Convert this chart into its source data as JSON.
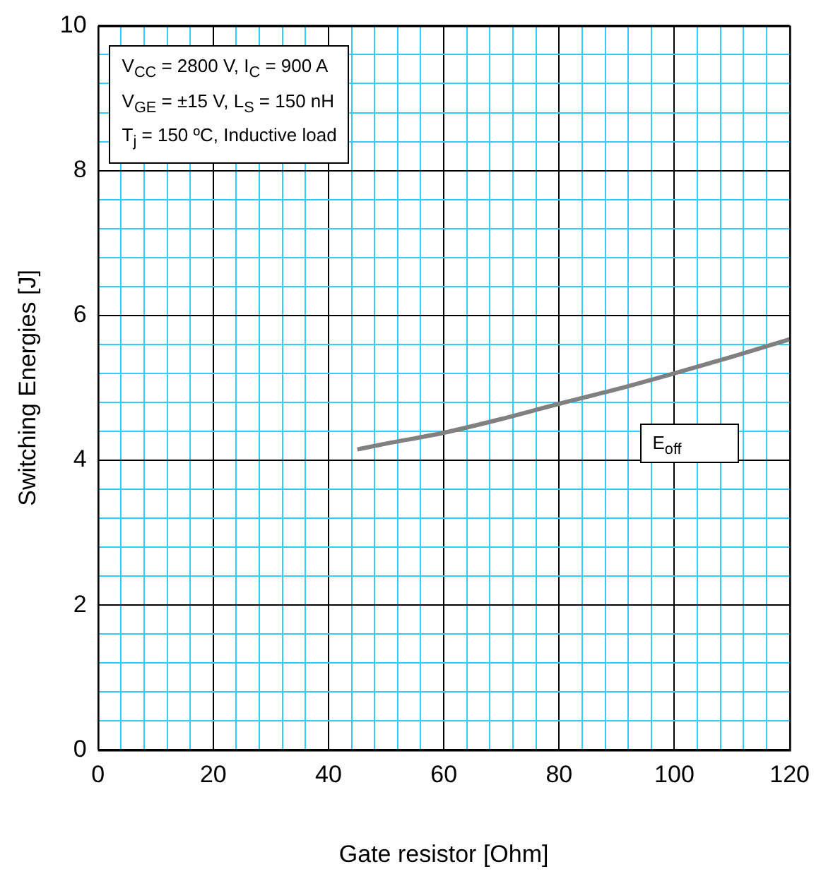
{
  "chart_data": {
    "type": "line",
    "xlabel": "Gate resistor [Ohm]",
    "ylabel": "Switching Energies [J]",
    "xlim": [
      0,
      120
    ],
    "xticks": [
      0,
      {
        "value": 4,
        "label": null
      },
      {
        "value": 8,
        "label": null
      },
      {
        "value": 12,
        "label": null
      },
      {
        "value": 16,
        "label": null
      },
      20,
      {
        "value": 24,
        "label": null
      },
      {
        "value": 28,
        "label": null
      },
      {
        "value": 32,
        "label": null
      },
      {
        "value": 36,
        "label": null
      },
      40,
      {
        "value": 44,
        "label": null
      },
      {
        "value": 48,
        "label": null
      },
      {
        "value": 52,
        "label": null
      },
      {
        "value": 56,
        "label": null
      },
      60,
      {
        "value": 64,
        "label": null
      },
      {
        "value": 68,
        "label": null
      },
      {
        "value": 72,
        "label": null
      },
      {
        "value": 76,
        "label": null
      },
      80,
      {
        "value": 84,
        "label": null
      },
      {
        "value": 88,
        "label": null
      },
      {
        "value": 92,
        "label": null
      },
      {
        "value": 96,
        "label": null
      },
      100,
      {
        "value": 104,
        "label": null
      },
      {
        "value": 108,
        "label": null
      },
      {
        "value": 112,
        "label": null
      },
      {
        "value": 116,
        "label": null
      },
      120
    ],
    "ylim": [
      0,
      10
    ],
    "yticks": [
      0,
      {
        "value": 0.4,
        "label": null
      },
      {
        "value": 0.8,
        "label": null
      },
      {
        "value": 1.2,
        "label": null
      },
      {
        "value": 1.6,
        "label": null
      },
      2,
      {
        "value": 2.4,
        "label": null
      },
      {
        "value": 2.8,
        "label": null
      },
      {
        "value": 3.2,
        "label": null
      },
      {
        "value": 3.6,
        "label": null
      },
      4,
      {
        "value": 4.4,
        "label": null
      },
      {
        "value": 4.8,
        "label": null
      },
      {
        "value": 5.2,
        "label": null
      },
      {
        "value": 5.6,
        "label": null
      },
      6,
      {
        "value": 6.4,
        "label": null
      },
      {
        "value": 6.8,
        "label": null
      },
      {
        "value": 7.2,
        "label": null
      },
      {
        "value": 7.6,
        "label": null
      },
      8,
      {
        "value": 8.4,
        "label": null
      },
      {
        "value": 8.8,
        "label": null
      },
      {
        "value": 9.2,
        "label": null
      },
      {
        "value": 9.6,
        "label": null
      },
      10
    ],
    "grid": true,
    "legend": false,
    "annotations": [
      "V$_{CC}$ = 2800 V, I$_{C}$ = 900 A",
      "V$_{GE}$ = ±15 V, L$_{S}$ = 150 nH",
      "T$_{j}$ = 150 ºC, Inductive load"
    ],
    "series": [
      {
        "name": "E$_{off}$",
        "color": "#808080",
        "x": [
          45,
          50,
          60,
          70,
          80,
          90,
          100,
          110,
          120
        ],
        "values": [
          4.15,
          4.23,
          4.38,
          4.57,
          4.78,
          4.98,
          5.2,
          5.43,
          5.67
        ]
      }
    ]
  }
}
